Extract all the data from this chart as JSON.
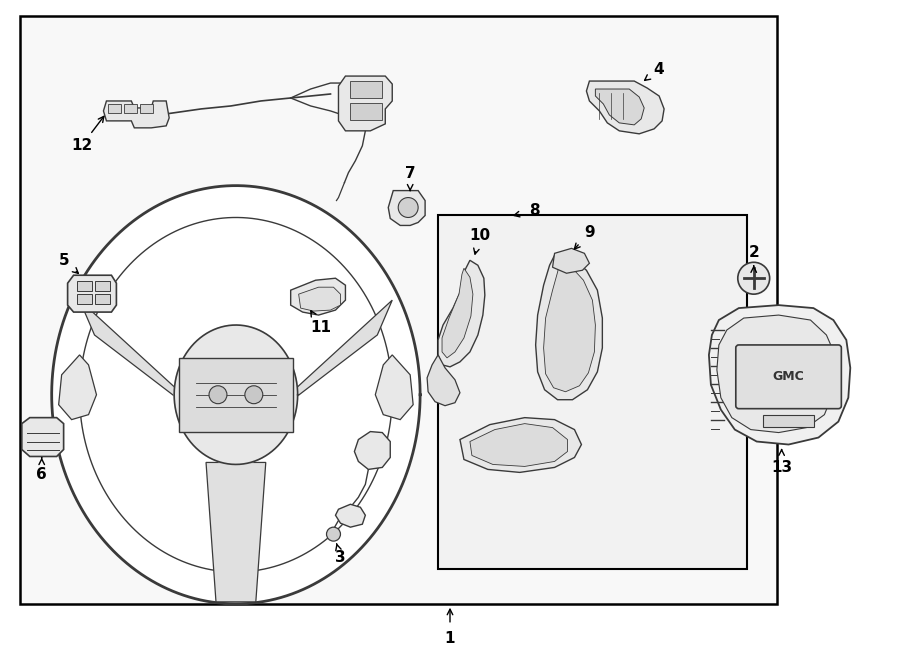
{
  "fig_width": 9.0,
  "fig_height": 6.62,
  "dpi": 100,
  "bg_color": "#ffffff",
  "lc": "#3a3a3a",
  "fc": "#f0f0f0",
  "fc2": "#e8e8e8",
  "lw_main": 1.3,
  "lw_thin": 0.8
}
